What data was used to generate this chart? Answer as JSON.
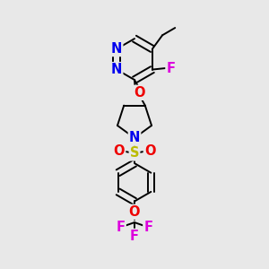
{
  "bg_color": "#e8e8e8",
  "bond_color": "#000000",
  "bond_width": 1.4,
  "atom_colors": {
    "N": "#0000ee",
    "O": "#ee0000",
    "F": "#dd00dd",
    "S": "#bbbb00",
    "C": "#000000"
  },
  "font_size": 10.5,
  "fig_size": [
    3.0,
    3.0
  ],
  "dpi": 100
}
